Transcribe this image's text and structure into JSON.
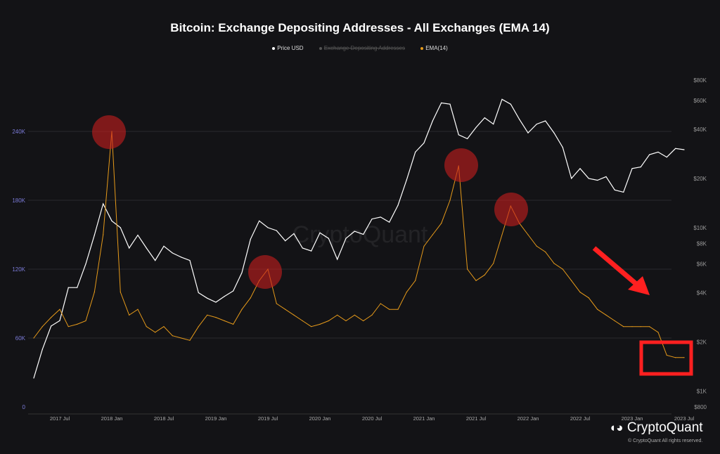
{
  "chart_data": {
    "type": "line",
    "title": "Bitcoin: Exchange Depositing Addresses - All Exchanges (EMA 14)",
    "legend": [
      {
        "name": "Price USD",
        "color": "#ffffff",
        "visible": true
      },
      {
        "name": "Exchange Depositing Addresses",
        "color": "#666666",
        "visible": false
      },
      {
        "name": "EMA(14)",
        "color": "#e69a1a",
        "visible": true
      }
    ],
    "legend_placement": "top-center",
    "x_start": "2017-04",
    "x_interval": "monthly",
    "x_ticks": [
      "2017 Jul",
      "2018 Jan",
      "2018 Jul",
      "2019 Jan",
      "2019 Jul",
      "2020 Jan",
      "2020 Jul",
      "2021 Jan",
      "2021 Jul",
      "2022 Jan",
      "2022 Jul",
      "2023 Jan",
      "2023 Jul"
    ],
    "y_left": {
      "ticks": [
        "0",
        "60K",
        "120K",
        "180K",
        "240K"
      ],
      "range": [
        0,
        240000
      ],
      "scale": "linear"
    },
    "y_right": {
      "ticks": [
        "$800",
        "$1K",
        "$2K",
        "$4K",
        "$6K",
        "$8K",
        "$10K",
        "$20K",
        "$40K",
        "$60K",
        "$80K"
      ],
      "range": [
        800,
        80000
      ],
      "scale": "log"
    },
    "grid": true,
    "series": [
      {
        "name": "Price USD",
        "axis": "right",
        "color": "#ffffff",
        "values": [
          1200,
          1800,
          2500,
          2700,
          4300,
          4300,
          6000,
          9000,
          14000,
          11000,
          10000,
          7500,
          9000,
          7500,
          6300,
          7700,
          7000,
          6600,
          6300,
          4000,
          3700,
          3500,
          3800,
          4100,
          5300,
          8500,
          11000,
          10000,
          9600,
          8300,
          9200,
          7500,
          7200,
          9300,
          8600,
          6400,
          8600,
          9500,
          9100,
          11300,
          11600,
          10800,
          13700,
          19600,
          29000,
          33000,
          45000,
          58000,
          57000,
          37000,
          35000,
          41000,
          47000,
          43000,
          61000,
          57000,
          46000,
          38000,
          43000,
          45000,
          38000,
          31000,
          20000,
          23000,
          20000,
          19500,
          20500,
          17000,
          16500,
          23000,
          23500,
          28000,
          29000,
          27000,
          30500,
          30000
        ]
      },
      {
        "name": "EMA(14)",
        "axis": "left",
        "color": "#e69a1a",
        "values": [
          60000,
          70000,
          78000,
          85000,
          70000,
          72000,
          75000,
          100000,
          150000,
          240000,
          100000,
          80000,
          85000,
          70000,
          65000,
          70000,
          62000,
          60000,
          58000,
          70000,
          80000,
          78000,
          75000,
          72000,
          85000,
          95000,
          110000,
          120000,
          90000,
          85000,
          80000,
          75000,
          70000,
          72000,
          75000,
          80000,
          75000,
          80000,
          75000,
          80000,
          90000,
          85000,
          85000,
          100000,
          110000,
          140000,
          150000,
          160000,
          180000,
          210000,
          120000,
          110000,
          115000,
          125000,
          150000,
          175000,
          160000,
          150000,
          140000,
          135000,
          125000,
          120000,
          110000,
          100000,
          95000,
          85000,
          80000,
          75000,
          70000,
          70000,
          70000,
          70000,
          65000,
          45000,
          43000,
          43000
        ]
      }
    ]
  },
  "watermark": "CryptoQuant",
  "brand": "CryptoQuant",
  "copyright": "© CryptoQuant All rights reserved.",
  "annotation_color": "#ff2020"
}
